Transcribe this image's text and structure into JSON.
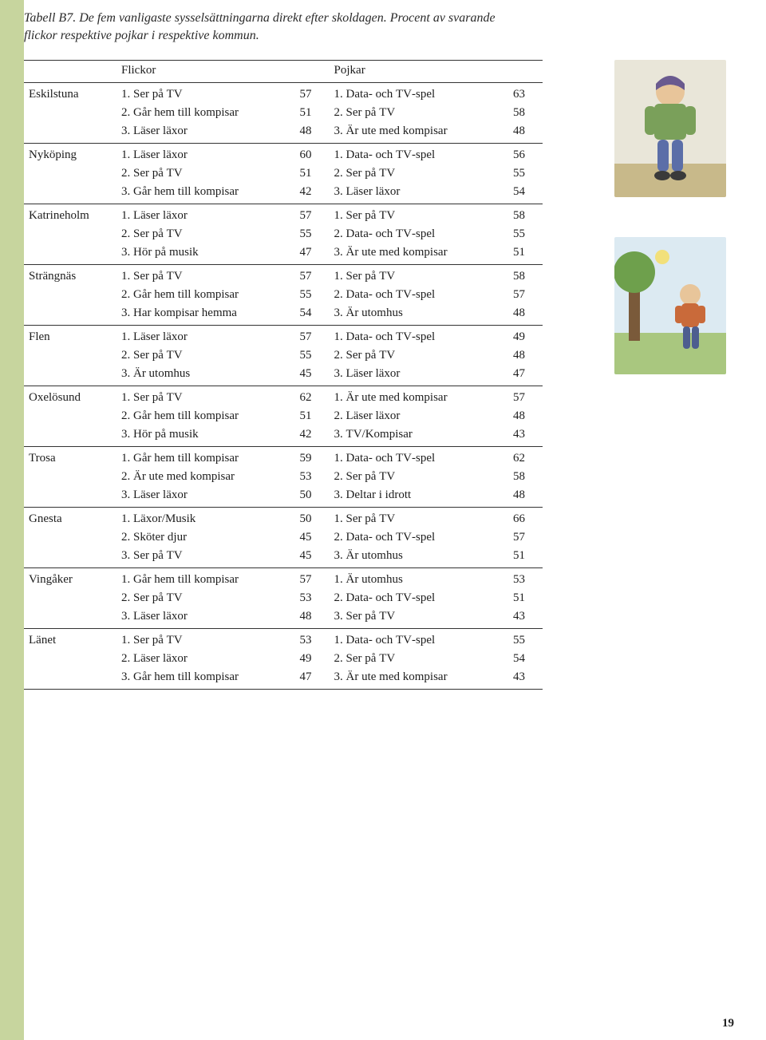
{
  "caption_line1": "Tabell B7. De fem vanligaste sysselsättningarna direkt efter skoldagen. Procent av svarande",
  "caption_line2": "flickor respektive pojkar i respektive kommun.",
  "col_flickor": "Flickor",
  "col_pojkar": "Pojkar",
  "page_number": "19",
  "rows": [
    {
      "kommun": "Eskilstuna",
      "f": [
        [
          "1. Ser på ",
          "TV",
          "57"
        ],
        [
          "2. Går hem till kompisar",
          "",
          "51"
        ],
        [
          "3. Läser läxor",
          "",
          "48"
        ]
      ],
      "p": [
        [
          "1. Data- och ",
          "TV",
          "-spel",
          "63"
        ],
        [
          "2. Ser på ",
          "TV",
          "",
          "58"
        ],
        [
          "3. Är ute med kompisar",
          "",
          "",
          "48"
        ]
      ]
    },
    {
      "kommun": "Nyköping",
      "f": [
        [
          "1. Läser läxor",
          "",
          "60"
        ],
        [
          "2. Ser på ",
          "TV",
          "51"
        ],
        [
          "3. Går hem till kompisar",
          "",
          "42"
        ]
      ],
      "p": [
        [
          "1. Data- och ",
          "TV",
          "-spel",
          "56"
        ],
        [
          "2. Ser på ",
          "TV",
          "",
          "55"
        ],
        [
          "3. Läser läxor",
          "",
          "",
          "54"
        ]
      ]
    },
    {
      "kommun": "Katrineholm",
      "f": [
        [
          "1. Läser läxor",
          "",
          "57"
        ],
        [
          "2. Ser på ",
          "TV",
          "55"
        ],
        [
          "3. Hör på musik",
          "",
          "47"
        ]
      ],
      "p": [
        [
          "1. Ser på ",
          "TV",
          "",
          "58"
        ],
        [
          "2. Data- och ",
          "TV",
          "-spel",
          "55"
        ],
        [
          "3. Är ute med kompisar",
          "",
          "",
          "51"
        ]
      ]
    },
    {
      "kommun": "Strängnäs",
      "f": [
        [
          "1. Ser på ",
          "TV",
          "57"
        ],
        [
          "2. Går hem till kompisar",
          "",
          "55"
        ],
        [
          "3. Har kompisar hemma",
          "",
          "54"
        ]
      ],
      "p": [
        [
          "1. Ser på ",
          "TV",
          "",
          "58"
        ],
        [
          "2. Data- och ",
          "TV",
          "-spel",
          "57"
        ],
        [
          "3. Är utomhus",
          "",
          "",
          "48"
        ]
      ]
    },
    {
      "kommun": "Flen",
      "f": [
        [
          "1. Läser läxor",
          "",
          "57"
        ],
        [
          "2. Ser på ",
          "TV",
          "55"
        ],
        [
          "3. Är utomhus",
          "",
          "45"
        ]
      ],
      "p": [
        [
          "1. Data- och ",
          "TV",
          "-spel",
          "49"
        ],
        [
          "2. Ser på ",
          "TV",
          "",
          "48"
        ],
        [
          "3. Läser läxor",
          "",
          "",
          "47"
        ]
      ]
    },
    {
      "kommun": "Oxelösund",
      "f": [
        [
          "1. Ser på ",
          "TV",
          "62"
        ],
        [
          "2. Går hem till kompisar",
          "",
          "51"
        ],
        [
          "3. Hör på musik",
          "",
          "42"
        ]
      ],
      "p": [
        [
          "1. Är ute med kompisar",
          "",
          "",
          "57"
        ],
        [
          "2. Läser läxor",
          "",
          "",
          "48"
        ],
        [
          "3. ",
          "TV",
          "/Kompisar",
          "43"
        ]
      ]
    },
    {
      "kommun": "Trosa",
      "f": [
        [
          "1. Går hem till kompisar",
          "",
          "59"
        ],
        [
          "2. Är ute med kompisar",
          "",
          "53"
        ],
        [
          "3. Läser läxor",
          "",
          "50"
        ]
      ],
      "p": [
        [
          "1. Data- och ",
          "TV",
          "-spel",
          "62"
        ],
        [
          "2. Ser på ",
          "TV",
          "",
          "58"
        ],
        [
          "3. Deltar i idrott",
          "",
          "",
          "48"
        ]
      ]
    },
    {
      "kommun": "Gnesta",
      "f": [
        [
          "1. Läxor/Musik",
          "",
          "50"
        ],
        [
          "2. Sköter djur",
          "",
          "45"
        ],
        [
          "3. Ser på ",
          "TV",
          "45"
        ]
      ],
      "p": [
        [
          "1. Ser på ",
          "TV",
          "",
          "66"
        ],
        [
          "2. Data- och ",
          "TV",
          "-spel",
          "57"
        ],
        [
          "3. Är utomhus",
          "",
          "",
          "51"
        ]
      ]
    },
    {
      "kommun": "Vingåker",
      "f": [
        [
          "1. Går hem till kompisar",
          "",
          "57"
        ],
        [
          "2. Ser på ",
          "TV",
          "53"
        ],
        [
          "3. Läser läxor",
          "",
          "48"
        ]
      ],
      "p": [
        [
          "1. Är utomhus",
          "",
          "",
          "53"
        ],
        [
          "2. Data- och ",
          "TV",
          "-spel",
          "51"
        ],
        [
          "3. Ser på ",
          "TV",
          "",
          "43"
        ]
      ]
    },
    {
      "kommun": "Länet",
      "f": [
        [
          "1. Ser på ",
          "TV",
          "53"
        ],
        [
          "2. Läser läxor",
          "",
          "49"
        ],
        [
          "3. Går hem till kompisar",
          "",
          "47"
        ]
      ],
      "p": [
        [
          "1. Data- och ",
          "TV",
          "-spel",
          "55"
        ],
        [
          "2. Ser på ",
          "TV",
          "",
          "54"
        ],
        [
          "3. Är ute med kompisar",
          "",
          "",
          "43"
        ]
      ]
    }
  ],
  "illustrations": [
    {
      "bg": "#e9e6d9",
      "accent1": "#6f8ecb",
      "accent2": "#b58a3e",
      "accent3": "#6a9a4a"
    },
    {
      "bg": "#dfe9f0",
      "accent1": "#5583b0",
      "accent2": "#8fb56a",
      "accent3": "#b97a3a"
    }
  ]
}
